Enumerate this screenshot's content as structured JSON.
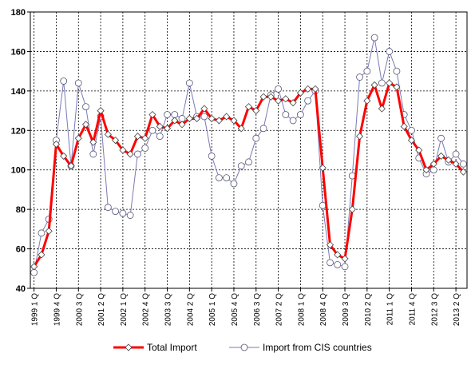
{
  "chart_data": {
    "type": "line",
    "title": "",
    "xlabel": "",
    "ylabel": "",
    "ylim": [
      40,
      180
    ],
    "yticks": [
      40,
      60,
      80,
      100,
      120,
      140,
      160,
      180
    ],
    "grid": true,
    "legend_position": "bottom",
    "x": [
      "1999 1 Q",
      "1999 2 Q",
      "1999 3 Q",
      "1999 4 Q",
      "2000 1 Q",
      "2000 2 Q",
      "2000 3 Q",
      "2000 4 Q",
      "2001 1 Q",
      "2001 2 Q",
      "2001 3 Q",
      "2001 4 Q",
      "2002 1 Q",
      "2002 2 Q",
      "2002 3 Q",
      "2002 4 Q",
      "2003 1 Q",
      "2003 2 Q",
      "2003 3 Q",
      "2003 4 Q",
      "2004 1 Q",
      "2004 2 Q",
      "2004 3 Q",
      "2004 4 Q",
      "2005 1 Q",
      "2005 2 Q",
      "2005 3 Q",
      "2005 4 Q",
      "2006 1 Q",
      "2006 2 Q",
      "2006 3 Q",
      "2006 4 Q",
      "2007 1 Q",
      "2007 2 Q",
      "2007 3 Q",
      "2007 4 Q",
      "2008 1 Q",
      "2008 2 Q",
      "2008 3 Q",
      "2008 4 Q",
      "2009 1 Q",
      "2009 2 Q",
      "2009 3 Q",
      "2009 4 Q",
      "2010 1 Q",
      "2010 2 Q",
      "2010 3 Q",
      "2010 4 Q",
      "2011 1 Q",
      "2011 2 Q",
      "2011 3 Q",
      "2011 4 Q",
      "2012 1 Q",
      "2012 2 Q",
      "2012 3 Q",
      "2012 4 Q",
      "2013 1 Q",
      "2013 2 Q",
      "2013 3 Q"
    ],
    "x_tick_labels": [
      "1999 1 Q",
      "1999 4 Q",
      "2000 3 Q",
      "2001 2 Q",
      "2002 1 Q",
      "2002 4 Q",
      "2003 3 Q",
      "2004 2 Q",
      "2005 1 Q",
      "2005 4 Q",
      "2006 3 Q",
      "2007 2 Q",
      "2008 1 Q",
      "2008 4 Q",
      "2009 3 Q",
      "2010 2 Q",
      "2011 1 Q",
      "2011 4 Q",
      "2012 3 Q",
      "2013 2 Q"
    ],
    "series": [
      {
        "name": "Total Import",
        "color": "#ff0000",
        "marker": "diamond",
        "values": [
          51,
          57,
          69,
          113,
          107,
          102,
          116,
          123,
          114,
          130,
          118,
          115,
          110,
          108,
          117,
          116,
          128,
          122,
          121,
          125,
          123,
          126,
          126,
          131,
          126,
          125,
          127,
          125,
          121,
          132,
          130,
          137,
          137,
          135,
          136,
          134,
          139,
          141,
          141,
          101,
          62,
          57,
          55,
          80,
          117,
          135,
          143,
          131,
          144,
          142,
          122,
          115,
          110,
          100,
          103,
          107,
          105,
          103,
          99
        ]
      },
      {
        "name": "Import from CIS countries",
        "color": "#7a7ab8",
        "marker": "circle",
        "values": [
          48,
          68,
          75,
          115,
          145,
          102,
          144,
          132,
          108,
          127,
          81,
          79,
          78,
          77,
          108,
          111,
          120,
          117,
          128,
          128,
          126,
          144,
          127,
          127,
          107,
          96,
          96,
          93,
          102,
          104,
          116,
          121,
          138,
          141,
          128,
          125,
          128,
          135,
          140,
          82,
          53,
          52,
          51,
          97,
          147,
          150,
          167,
          144,
          160,
          150,
          128,
          120,
          106,
          98,
          100,
          116,
          104,
          108,
          103
        ]
      }
    ]
  }
}
